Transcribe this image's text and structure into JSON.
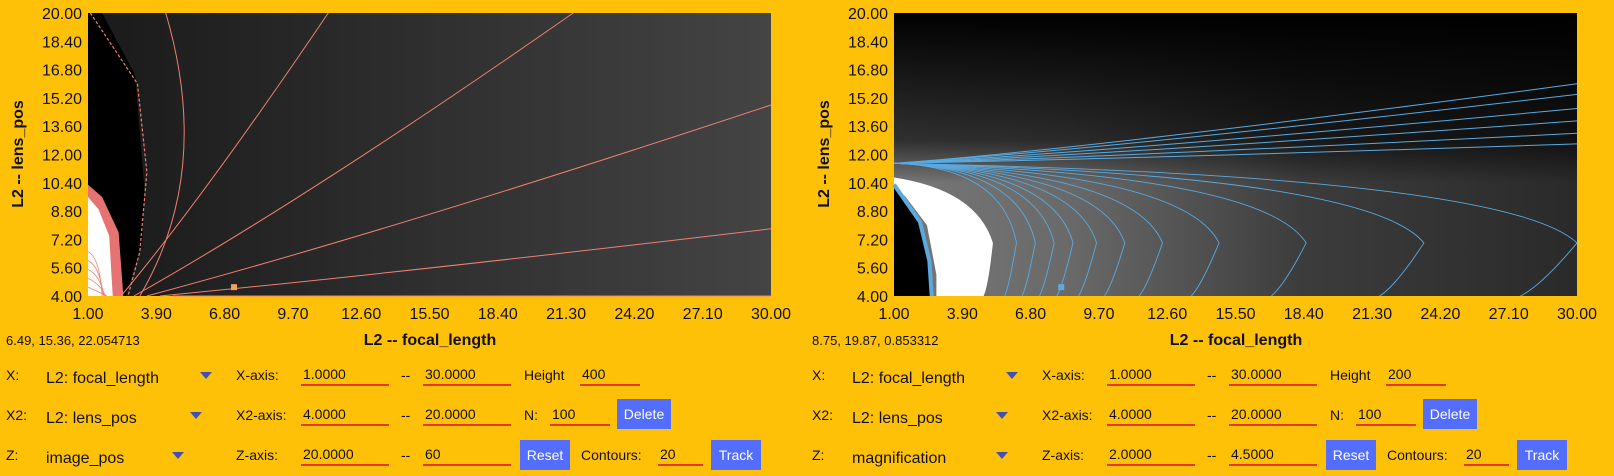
{
  "panels": [
    {
      "heatmap": {
        "colormap": "grayscale",
        "background": "#000000",
        "contour_color": "#F08070",
        "marker_color": "#F0A060",
        "high_region_color": "#FFFFFF"
      },
      "chart_data": {
        "type": "heatmap",
        "x": [
          1.0,
          30.0
        ],
        "y": [
          4.0,
          20.0
        ],
        "xticks": [
          "1.00",
          "3.90",
          "6.80",
          "9.70",
          "12.60",
          "15.50",
          "18.40",
          "21.30",
          "24.20",
          "27.10",
          "30.00"
        ],
        "yticks": [
          "4.00",
          "5.60",
          "7.20",
          "8.80",
          "10.40",
          "12.00",
          "13.60",
          "15.20",
          "16.80",
          "18.40",
          "20.00"
        ],
        "xlabel": "L2 -- focal_length",
        "ylabel": "L2 -- lens_pos",
        "xlim": [
          1.0,
          30.0
        ],
        "ylim": [
          4.0,
          20.0
        ],
        "marker": {
          "x": 7.2,
          "y": 4.5
        }
      },
      "readout": "6.49, 15.36, 22.054713",
      "controls": {
        "x_label": "X:",
        "x_value": "L2: focal_length",
        "x2_label": "X2:",
        "x2_value": "L2: lens_pos",
        "z_label": "Z:",
        "z_value": "image_pos",
        "xaxis_label": "X-axis:",
        "xaxis_min": "1.0000",
        "xaxis_sep": "--",
        "xaxis_max": "30.0000",
        "x2axis_label": "X2-axis:",
        "x2axis_min": "4.0000",
        "x2axis_sep": "--",
        "x2axis_max": "20.0000",
        "zaxis_label": "Z-axis:",
        "zaxis_min": "20.0000",
        "zaxis_sep": "--",
        "zaxis_max": "60",
        "height_label": "Height",
        "height_value": "400",
        "n_label": "N:",
        "n_value": "100",
        "contours_label": "Contours:",
        "contours_value": "20",
        "delete_label": "Delete",
        "reset_label": "Reset",
        "track_label": "Track"
      }
    },
    {
      "heatmap": {
        "colormap": "grayscale",
        "background": "#000000",
        "contour_color": "#5AAAE0",
        "marker_color": "#5AAAE0",
        "high_region_color": "#FFFFFF"
      },
      "chart_data": {
        "type": "heatmap",
        "x": [
          1.0,
          30.0
        ],
        "y": [
          4.0,
          20.0
        ],
        "xticks": [
          "1.00",
          "3.90",
          "6.80",
          "9.70",
          "12.60",
          "15.50",
          "18.40",
          "21.30",
          "24.20",
          "27.10",
          "30.00"
        ],
        "yticks": [
          "4.00",
          "5.60",
          "7.20",
          "8.80",
          "10.40",
          "12.00",
          "13.60",
          "15.20",
          "16.80",
          "18.40",
          "20.00"
        ],
        "xlabel": "L2 -- focal_length",
        "ylabel": "L2 -- lens_pos",
        "xlim": [
          1.0,
          30.0
        ],
        "ylim": [
          4.0,
          20.0
        ],
        "marker": {
          "x": 8.1,
          "y": 4.5
        }
      },
      "readout": "8.75, 19.87, 0.853312",
      "controls": {
        "x_label": "X:",
        "x_value": "L2: focal_length",
        "x2_label": "X2:",
        "x2_value": "L2: lens_pos",
        "z_label": "Z:",
        "z_value": "magnification",
        "xaxis_label": "X-axis:",
        "xaxis_min": "1.0000",
        "xaxis_sep": "--",
        "xaxis_max": "30.0000",
        "x2axis_label": "X2-axis:",
        "x2axis_min": "4.0000",
        "x2axis_sep": "--",
        "x2axis_max": "20.0000",
        "zaxis_label": "Z-axis:",
        "zaxis_min": "2.0000",
        "zaxis_sep": "--",
        "zaxis_max": "4.5000",
        "height_label": "Height",
        "height_value": "200",
        "n_label": "N:",
        "n_value": "100",
        "contours_label": "Contours:",
        "contours_value": "20",
        "delete_label": "Delete",
        "reset_label": "Reset",
        "track_label": "Track"
      }
    }
  ]
}
